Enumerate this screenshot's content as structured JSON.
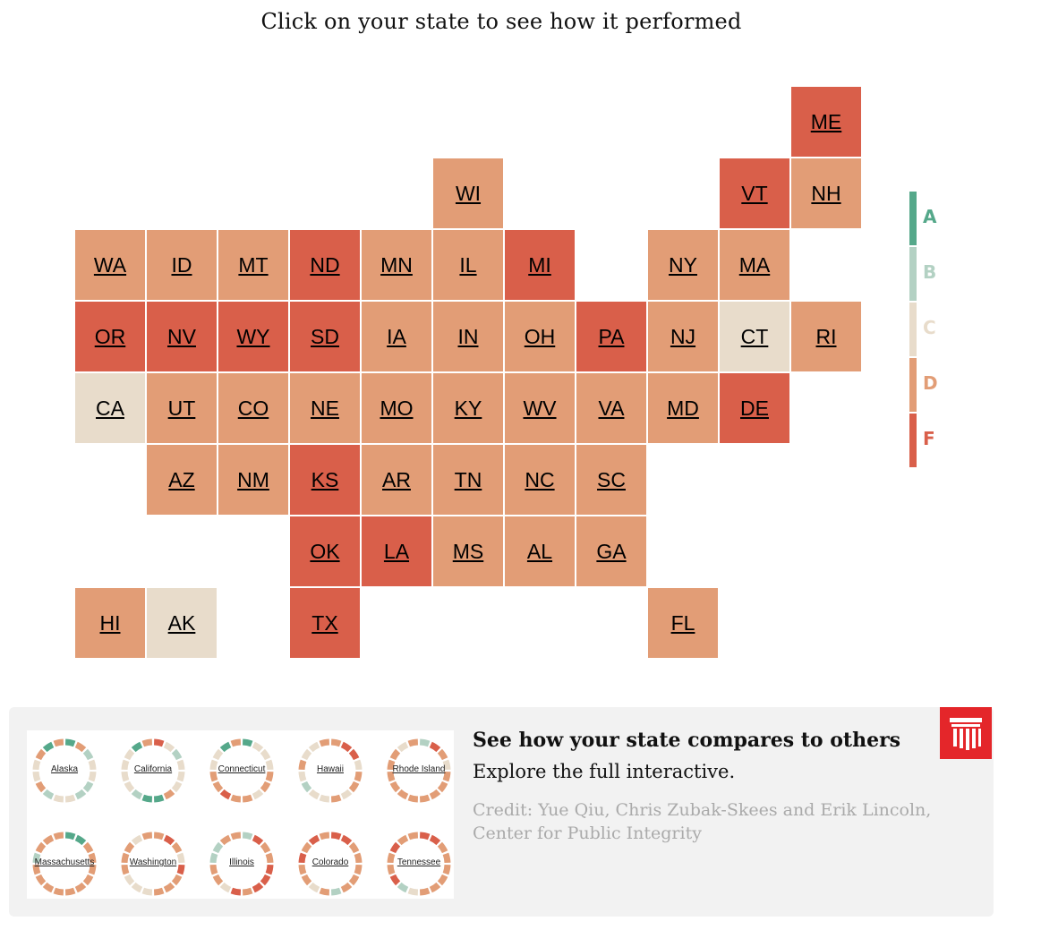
{
  "title": "Click on your state to see how it performed",
  "colors": {
    "A": "#55a88a",
    "B": "#b3d1c3",
    "C": "#e8dccb",
    "D": "#e29d76",
    "F": "#d95f4a"
  },
  "legend": [
    "A",
    "B",
    "C",
    "D",
    "F"
  ],
  "states": [
    {
      "abbr": "ME",
      "grade": "F",
      "row": 0,
      "col": 10
    },
    {
      "abbr": "WI",
      "grade": "D",
      "row": 1,
      "col": 5
    },
    {
      "abbr": "VT",
      "grade": "F",
      "row": 1,
      "col": 9
    },
    {
      "abbr": "NH",
      "grade": "D",
      "row": 1,
      "col": 10
    },
    {
      "abbr": "WA",
      "grade": "D",
      "row": 2,
      "col": 0
    },
    {
      "abbr": "ID",
      "grade": "D",
      "row": 2,
      "col": 1
    },
    {
      "abbr": "MT",
      "grade": "D",
      "row": 2,
      "col": 2
    },
    {
      "abbr": "ND",
      "grade": "F",
      "row": 2,
      "col": 3
    },
    {
      "abbr": "MN",
      "grade": "D",
      "row": 2,
      "col": 4
    },
    {
      "abbr": "IL",
      "grade": "D",
      "row": 2,
      "col": 5
    },
    {
      "abbr": "MI",
      "grade": "F",
      "row": 2,
      "col": 6
    },
    {
      "abbr": "NY",
      "grade": "D",
      "row": 2,
      "col": 8
    },
    {
      "abbr": "MA",
      "grade": "D",
      "row": 2,
      "col": 9
    },
    {
      "abbr": "OR",
      "grade": "F",
      "row": 3,
      "col": 0
    },
    {
      "abbr": "NV",
      "grade": "F",
      "row": 3,
      "col": 1
    },
    {
      "abbr": "WY",
      "grade": "F",
      "row": 3,
      "col": 2
    },
    {
      "abbr": "SD",
      "grade": "F",
      "row": 3,
      "col": 3
    },
    {
      "abbr": "IA",
      "grade": "D",
      "row": 3,
      "col": 4
    },
    {
      "abbr": "IN",
      "grade": "D",
      "row": 3,
      "col": 5
    },
    {
      "abbr": "OH",
      "grade": "D",
      "row": 3,
      "col": 6
    },
    {
      "abbr": "PA",
      "grade": "F",
      "row": 3,
      "col": 7
    },
    {
      "abbr": "NJ",
      "grade": "D",
      "row": 3,
      "col": 8
    },
    {
      "abbr": "CT",
      "grade": "C",
      "row": 3,
      "col": 9
    },
    {
      "abbr": "RI",
      "grade": "D",
      "row": 3,
      "col": 10
    },
    {
      "abbr": "CA",
      "grade": "C",
      "row": 4,
      "col": 0
    },
    {
      "abbr": "UT",
      "grade": "D",
      "row": 4,
      "col": 1
    },
    {
      "abbr": "CO",
      "grade": "D",
      "row": 4,
      "col": 2
    },
    {
      "abbr": "NE",
      "grade": "D",
      "row": 4,
      "col": 3
    },
    {
      "abbr": "MO",
      "grade": "D",
      "row": 4,
      "col": 4
    },
    {
      "abbr": "KY",
      "grade": "D",
      "row": 4,
      "col": 5
    },
    {
      "abbr": "WV",
      "grade": "D",
      "row": 4,
      "col": 6
    },
    {
      "abbr": "VA",
      "grade": "D",
      "row": 4,
      "col": 7
    },
    {
      "abbr": "MD",
      "grade": "D",
      "row": 4,
      "col": 8
    },
    {
      "abbr": "DE",
      "grade": "F",
      "row": 4,
      "col": 9
    },
    {
      "abbr": "AZ",
      "grade": "D",
      "row": 5,
      "col": 1
    },
    {
      "abbr": "NM",
      "grade": "D",
      "row": 5,
      "col": 2
    },
    {
      "abbr": "KS",
      "grade": "F",
      "row": 5,
      "col": 3
    },
    {
      "abbr": "AR",
      "grade": "D",
      "row": 5,
      "col": 4
    },
    {
      "abbr": "TN",
      "grade": "D",
      "row": 5,
      "col": 5
    },
    {
      "abbr": "NC",
      "grade": "D",
      "row": 5,
      "col": 6
    },
    {
      "abbr": "SC",
      "grade": "D",
      "row": 5,
      "col": 7
    },
    {
      "abbr": "OK",
      "grade": "F",
      "row": 6,
      "col": 3
    },
    {
      "abbr": "LA",
      "grade": "F",
      "row": 6,
      "col": 4
    },
    {
      "abbr": "MS",
      "grade": "D",
      "row": 6,
      "col": 5
    },
    {
      "abbr": "AL",
      "grade": "D",
      "row": 6,
      "col": 6
    },
    {
      "abbr": "GA",
      "grade": "D",
      "row": 6,
      "col": 7
    },
    {
      "abbr": "HI",
      "grade": "D",
      "row": 7,
      "col": 0
    },
    {
      "abbr": "AK",
      "grade": "C",
      "row": 7,
      "col": 1
    },
    {
      "abbr": "TX",
      "grade": "F",
      "row": 7,
      "col": 3
    },
    {
      "abbr": "FL",
      "grade": "D",
      "row": 7,
      "col": 8
    }
  ],
  "promo": {
    "heading": "See how your state compares to others",
    "subheading": "Explore the full interactive.",
    "credit": "Credit: Yue Qiu, Chris Zubak-Skees and Erik Lincoln, Center for Public Integrity",
    "thumbnails": [
      {
        "name": "Alaska",
        "segments": [
          "A",
          "D",
          "B",
          "C",
          "C",
          "B",
          "B",
          "C",
          "C",
          "B",
          "D",
          "C",
          "C",
          "D",
          "A",
          "D"
        ]
      },
      {
        "name": "California",
        "segments": [
          "F",
          "C",
          "B",
          "C",
          "C",
          "C",
          "D",
          "A",
          "A",
          "B",
          "C",
          "C",
          "C",
          "C",
          "A",
          "D"
        ]
      },
      {
        "name": "Connecticut",
        "segments": [
          "A",
          "C",
          "C",
          "C",
          "D",
          "D",
          "C",
          "D",
          "D",
          "F",
          "D",
          "D",
          "C",
          "C",
          "A",
          "D"
        ]
      },
      {
        "name": "Hawaii",
        "segments": [
          "D",
          "F",
          "F",
          "C",
          "D",
          "D",
          "C",
          "D",
          "C",
          "C",
          "B",
          "C",
          "D",
          "C",
          "C",
          "D"
        ]
      },
      {
        "name": "Rhode Island",
        "segments": [
          "B",
          "F",
          "D",
          "C",
          "D",
          "D",
          "D",
          "D",
          "D",
          "D",
          "D",
          "D",
          "D",
          "D",
          "C",
          "D"
        ]
      },
      {
        "name": "Massachusetts",
        "segments": [
          "A",
          "A",
          "D",
          "D",
          "D",
          "D",
          "D",
          "D",
          "D",
          "D",
          "D",
          "D",
          "B",
          "D",
          "D",
          "D"
        ]
      },
      {
        "name": "Washington",
        "segments": [
          "D",
          "F",
          "D",
          "C",
          "F",
          "D",
          "D",
          "D",
          "C",
          "C",
          "C",
          "D",
          "D",
          "D",
          "C",
          "D"
        ]
      },
      {
        "name": "Illinois",
        "segments": [
          "B",
          "F",
          "D",
          "D",
          "F",
          "F",
          "F",
          "D",
          "F",
          "C",
          "D",
          "D",
          "B",
          "B",
          "D",
          "D"
        ]
      },
      {
        "name": "Colorado",
        "segments": [
          "F",
          "F",
          "D",
          "D",
          "D",
          "D",
          "D",
          "B",
          "D",
          "C",
          "D",
          "D",
          "F",
          "D",
          "F",
          "D"
        ]
      },
      {
        "name": "Tennessee",
        "segments": [
          "F",
          "F",
          "D",
          "D",
          "D",
          "D",
          "D",
          "D",
          "C",
          "B",
          "F",
          "D",
          "D",
          "F",
          "D",
          "D"
        ]
      }
    ]
  }
}
